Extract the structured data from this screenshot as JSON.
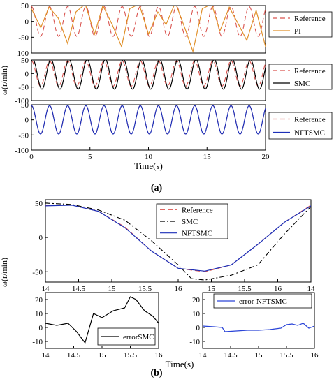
{
  "colors": {
    "reference": "#d9534f",
    "pi": "#e0902a",
    "smc": "#000000",
    "nftsmc": "#1c2fb8",
    "error_nftsmc": "#2a44d8",
    "axis": "#000000"
  },
  "panel_labels": [
    "(a)",
    "(b)"
  ],
  "chart_data": [
    {
      "id": "a1",
      "type": "line",
      "panel": "(a)",
      "xlim": [
        0,
        20
      ],
      "ylim": [
        -100,
        50
      ],
      "yticks": [
        "50",
        "0",
        "-50",
        "-100"
      ],
      "xticks": [],
      "ylabel": "",
      "xlabel": "",
      "legend_placement": "outside-right",
      "series": [
        {
          "name": "Reference",
          "style": "dashed",
          "color_key": "reference",
          "fn": "sine",
          "amp": 47,
          "period": 1.55,
          "phase": 1.57
        },
        {
          "name": "PI",
          "style": "solid",
          "color_key": "pi",
          "fn": "pi",
          "x": [
            0,
            0.8,
            1.5,
            2.3,
            3.1,
            3.8,
            4.6,
            5.4,
            6.1,
            6.9,
            7.7,
            8.4,
            9.2,
            10,
            10.8,
            11.5,
            12.3,
            13.1,
            13.8,
            14.6,
            15.4,
            16.1,
            16.9,
            17.7,
            18.4,
            19.2,
            20
          ],
          "y": [
            40,
            -20,
            45,
            10,
            -70,
            30,
            55,
            -40,
            50,
            -10,
            -80,
            40,
            55,
            -40,
            30,
            -10,
            60,
            -20,
            -95,
            40,
            55,
            -30,
            45,
            -10,
            -60,
            35,
            -80
          ]
        }
      ]
    },
    {
      "id": "a2",
      "type": "line",
      "panel": "(a)",
      "xlim": [
        0,
        20
      ],
      "ylim": [
        -100,
        50
      ],
      "yticks": [
        "50",
        "0",
        "-50",
        "-100"
      ],
      "xticks": [],
      "ylabel": "ω(r/min)",
      "xlabel": "",
      "legend_placement": "outside-right",
      "series": [
        {
          "name": "Reference",
          "style": "dashed",
          "color_key": "reference",
          "fn": "sine",
          "amp": 47,
          "period": 1.55,
          "phase": 1.57
        },
        {
          "name": "SMC",
          "style": "solid",
          "color_key": "smc",
          "fn": "sine",
          "amp": 55,
          "period": 1.55,
          "phase": 1.1,
          "offset": -3
        }
      ]
    },
    {
      "id": "a3",
      "type": "line",
      "panel": "(a)",
      "xlim": [
        0,
        20
      ],
      "ylim": [
        -100,
        50
      ],
      "yticks": [
        "50",
        "0",
        "-50",
        "-100"
      ],
      "xticks": [
        "0",
        "5",
        "10",
        "15",
        "20"
      ],
      "ylabel": "",
      "xlabel": "Time(s)",
      "legend_placement": "outside-right",
      "series": [
        {
          "name": "Reference",
          "style": "dashed",
          "color_key": "reference",
          "fn": "sine",
          "amp": 47,
          "period": 1.55,
          "phase": 1.57
        },
        {
          "name": "NFTSMC",
          "style": "solid",
          "color_key": "nftsmc",
          "fn": "sine",
          "amp": 47,
          "period": 1.55,
          "phase": 1.57
        }
      ]
    },
    {
      "id": "b1",
      "type": "line",
      "panel": "(b)",
      "xlim": [
        0,
        1
      ],
      "ylim": [
        -65,
        55
      ],
      "yticks": [
        "50",
        "0",
        "-50"
      ],
      "xticks": [
        "14",
        "14.5",
        "15",
        "15.5",
        "16",
        "15",
        "15.5",
        "16",
        "14"
      ],
      "ylabel": "ω(r/min)",
      "xlabel": "",
      "legend_placement": "top-right",
      "series": [
        {
          "name": "Reference",
          "style": "dashed",
          "color_key": "reference",
          "x": [
            0,
            0.1,
            0.2,
            0.3,
            0.4,
            0.5,
            0.6,
            0.7,
            0.8,
            0.9,
            1.0
          ],
          "y": [
            47,
            47,
            38,
            15,
            -20,
            -45,
            -50,
            -40,
            -10,
            22,
            47
          ]
        },
        {
          "name": "SMC",
          "style": "dashdot",
          "color_key": "smc",
          "x": [
            0,
            0.1,
            0.2,
            0.3,
            0.4,
            0.5,
            0.55,
            0.6,
            0.7,
            0.8,
            0.9,
            1.0
          ],
          "y": [
            50,
            48,
            40,
            25,
            -5,
            -40,
            -60,
            -62,
            -55,
            -40,
            5,
            45
          ]
        },
        {
          "name": "NFTSMC",
          "style": "solid",
          "color_key": "nftsmc",
          "x": [
            0,
            0.1,
            0.2,
            0.3,
            0.4,
            0.5,
            0.6,
            0.7,
            0.8,
            0.9,
            1.0
          ],
          "y": [
            46,
            47,
            38,
            14,
            -20,
            -45,
            -49,
            -40,
            -10,
            22,
            46
          ]
        }
      ]
    },
    {
      "id": "b2",
      "type": "line",
      "panel": "(b)",
      "xlim": [
        14,
        16
      ],
      "ylim": [
        -15,
        25
      ],
      "yticks": [
        "20",
        "10",
        "0",
        "-10"
      ],
      "xticks": [
        "14",
        "14.5",
        "15",
        "15.5",
        "16"
      ],
      "ylabel": "",
      "xlabel": "Time(s)",
      "legend_placement": "bottom-right",
      "series": [
        {
          "name": "errorSMC",
          "style": "solid",
          "color_key": "smc",
          "x": [
            14,
            14.2,
            14.4,
            14.55,
            14.7,
            14.85,
            15,
            15.2,
            15.4,
            15.5,
            15.6,
            15.75,
            15.9,
            16
          ],
          "y": [
            3,
            1.5,
            3,
            -3,
            -11,
            10,
            7,
            12,
            14,
            22,
            20,
            12,
            8,
            3
          ]
        }
      ]
    },
    {
      "id": "b3",
      "type": "line",
      "panel": "(b)",
      "xlim": [
        14,
        16
      ],
      "ylim": [
        -15,
        25
      ],
      "yticks": [
        "20",
        "10",
        "0",
        "-10"
      ],
      "xticks": [
        "14",
        "14.5",
        "15",
        "15.5",
        "16"
      ],
      "ylabel": "",
      "xlabel": "",
      "legend_placement": "top-right",
      "series": [
        {
          "name": "error-NFTSMC",
          "style": "solid",
          "color_key": "error_nftsmc",
          "x": [
            14,
            14.2,
            14.35,
            14.4,
            14.6,
            14.8,
            15,
            15.2,
            15.4,
            15.5,
            15.6,
            15.7,
            15.8,
            15.9,
            16
          ],
          "y": [
            1,
            0.5,
            0,
            -3,
            -2.5,
            -2,
            -2,
            -1.5,
            -0.5,
            2,
            2.5,
            1.5,
            3,
            -0.5,
            1
          ]
        }
      ]
    }
  ]
}
